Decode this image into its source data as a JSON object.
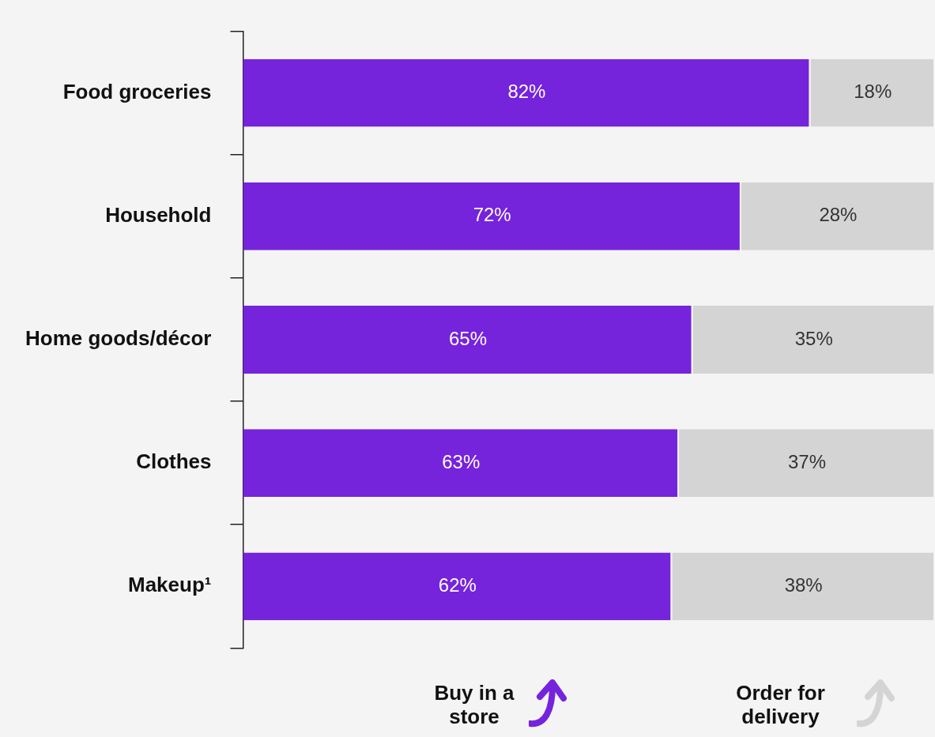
{
  "chart_data": {
    "type": "bar",
    "orientation": "horizontal",
    "stacked": true,
    "categories": [
      "Food groceries",
      "Household",
      "Home goods/décor",
      "Clothes",
      "Makeup¹"
    ],
    "series": [
      {
        "name": "Buy in a store",
        "color": "#7623dc",
        "values": [
          82,
          72,
          65,
          63,
          62
        ],
        "value_labels": [
          "82%",
          "72%",
          "65%",
          "63%",
          "62%"
        ]
      },
      {
        "name": "Order for delivery",
        "color": "#d4d4d4",
        "values": [
          18,
          28,
          35,
          37,
          38
        ],
        "value_labels": [
          "18%",
          "28%",
          "35%",
          "37%",
          "38%"
        ]
      }
    ],
    "xlim": [
      0,
      100
    ],
    "tick_labels": "y",
    "grid": false,
    "legend": "bottom"
  }
}
